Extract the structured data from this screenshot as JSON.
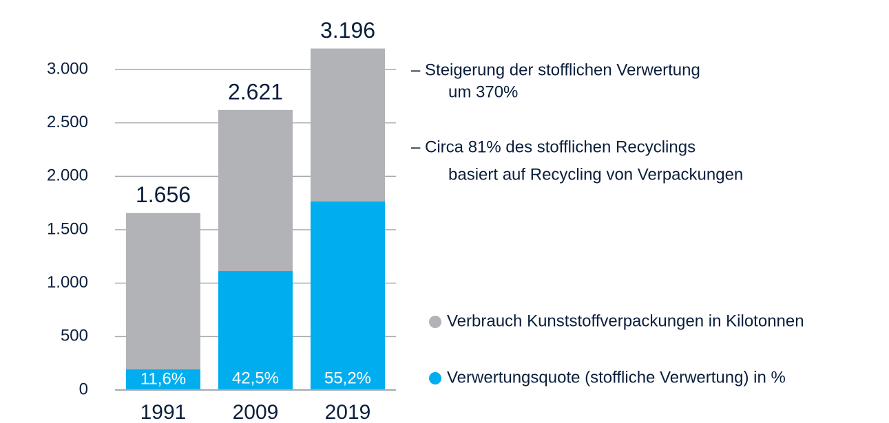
{
  "chart_data": {
    "type": "bar",
    "categories": [
      "1991",
      "2009",
      "2019"
    ],
    "series": [
      {
        "name": "Verbrauch Kunststoffverpackungen in Kilotonnen",
        "color": "#b1b3b6",
        "values": [
          1656,
          2621,
          3196
        ],
        "value_labels": [
          "1.656",
          "2.621",
          "3.196"
        ]
      },
      {
        "name": "Verwertungsquote (stoffliche Verwertung) in %",
        "color": "#00aeef",
        "values": [
          11.6,
          42.5,
          55.2
        ],
        "value_labels": [
          "11,6%",
          "42,5%",
          "55,2%"
        ]
      }
    ],
    "ylim": [
      0,
      3000
    ],
    "yticks": [
      0,
      500,
      {
        "value": 1000,
        "label": "1.000"
      },
      {
        "value": 1500,
        "label": "1.500"
      },
      {
        "value": 2000,
        "label": "2.000"
      },
      {
        "value": 2500,
        "label": "2.500"
      },
      {
        "value": 3000,
        "label": "3.000"
      }
    ],
    "grid": true,
    "annotations": [
      [
        "– Steigerung der stofflichen Verwertung",
        "um 370%"
      ],
      [
        "– Circa 81% des stofflichen Recyclings",
        "basiert auf Recycling von Verpackungen"
      ]
    ]
  }
}
